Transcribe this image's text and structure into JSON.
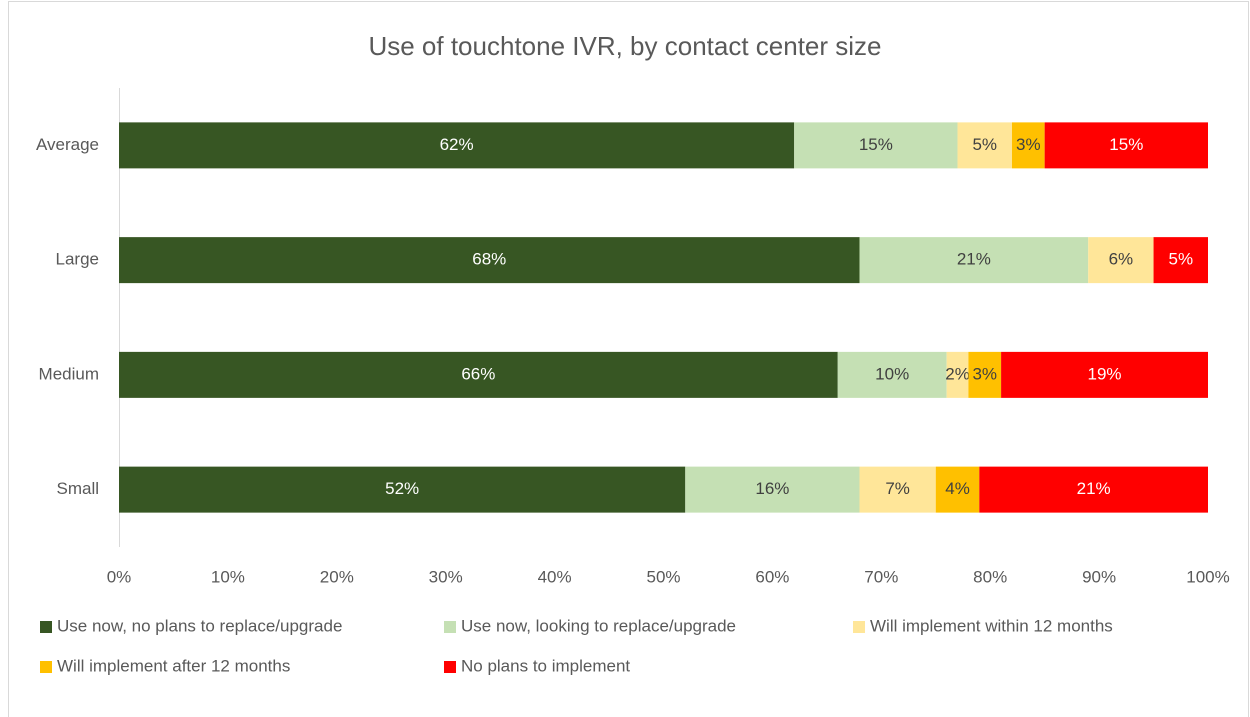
{
  "chart_data": {
    "type": "stacked_bar_horizontal",
    "title": "Use of touchtone IVR, by contact center size",
    "categories": [
      "Average",
      "Large",
      "Medium",
      "Small"
    ],
    "series": [
      {
        "name": "Use now, no plans to replace/upgrade",
        "color": "#375623",
        "values": [
          62,
          68,
          66,
          52
        ],
        "value_labels": [
          "62%",
          "68%",
          "66%",
          "52%"
        ]
      },
      {
        "name": "Use now, looking to replace/upgrade",
        "color": "#c5e0b4",
        "values": [
          15,
          21,
          10,
          16
        ],
        "value_labels": [
          "15%",
          "21%",
          "10%",
          "16%"
        ]
      },
      {
        "name": "Will implement within 12 months",
        "color": "#ffe699",
        "values": [
          5,
          6,
          2,
          7
        ],
        "value_labels": [
          "5%",
          "6%",
          "2%",
          "7%"
        ]
      },
      {
        "name": "Will implement after 12 months",
        "color": "#ffc000",
        "values": [
          3,
          0,
          3,
          4
        ],
        "value_labels": [
          "3%",
          null,
          "3%",
          "4%"
        ]
      },
      {
        "name": "No plans to implement",
        "color": "#ff0000",
        "values": [
          15,
          5,
          19,
          21
        ],
        "value_labels": [
          "15%",
          "5%",
          "19%",
          "21%"
        ]
      }
    ],
    "xlim": [
      0,
      100
    ],
    "xticks": [
      {
        "value": 0,
        "label": "0%"
      },
      {
        "value": 10,
        "label": "10%"
      },
      {
        "value": 20,
        "label": "20%"
      },
      {
        "value": 30,
        "label": "30%"
      },
      {
        "value": 40,
        "label": "40%"
      },
      {
        "value": 50,
        "label": "50%"
      },
      {
        "value": 60,
        "label": "60%"
      },
      {
        "value": 70,
        "label": "70%"
      },
      {
        "value": 80,
        "label": "80%"
      },
      {
        "value": 90,
        "label": "90%"
      },
      {
        "value": 100,
        "label": "100%"
      }
    ],
    "legend": "bottom"
  }
}
